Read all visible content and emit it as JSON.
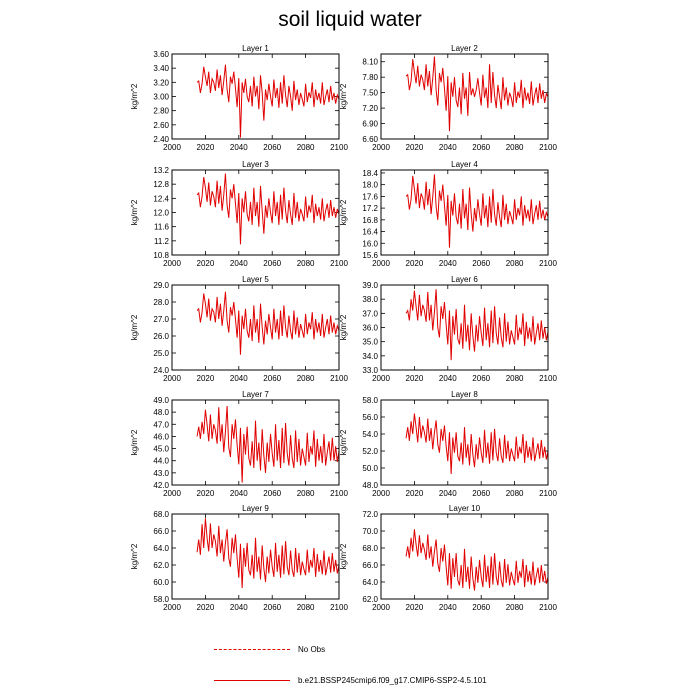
{
  "title": "soil liquid water",
  "colors": {
    "series": "#e00000",
    "axis": "#000000"
  },
  "legend": {
    "obs_label": "No Obs",
    "model_label": "b.e21.BSSP245cmip6.f09_g17.CMIP6-SSP2-4.5.101"
  },
  "chart_data": [
    {
      "type": "line",
      "title": "Layer 1",
      "ylabel": "kg/m^2",
      "xlim": [
        2000,
        2100
      ],
      "ylim": [
        2.4,
        3.6
      ],
      "yticks": [
        "2.40",
        "2.60",
        "2.80",
        "3.00",
        "3.20",
        "3.40",
        "3.60"
      ],
      "xticks": [
        "2000",
        "2020",
        "2040",
        "2060",
        "2080",
        "2100"
      ],
      "x_start": 2015,
      "values": [
        3.2,
        3.22,
        3.05,
        3.18,
        3.42,
        3.28,
        3.15,
        3.35,
        3.05,
        3.25,
        3.2,
        3.08,
        3.38,
        3.12,
        3.3,
        3.02,
        3.22,
        3.45,
        3.1,
        2.92,
        3.28,
        3.18,
        3.35,
        3.12,
        2.85,
        3.26,
        2.42,
        3.2,
        3.05,
        3.25,
        3.0,
        2.92,
        3.15,
        2.86,
        3.28,
        3.0,
        3.15,
        2.82,
        3.3,
        3.05,
        2.66,
        3.1,
        2.95,
        3.18,
        3.0,
        2.86,
        3.24,
        2.98,
        3.12,
        2.84,
        3.2,
        2.9,
        3.3,
        3.02,
        2.85,
        3.15,
        3.0,
        2.8,
        3.22,
        2.95,
        3.1,
        2.88,
        3.05,
        2.96,
        2.86,
        3.18,
        2.92,
        3.06,
        2.98,
        3.2,
        2.85,
        3.1,
        2.95,
        3.05,
        2.9,
        3.2,
        2.88,
        3.0,
        3.1,
        2.92,
        3.15,
        2.95,
        3.05,
        2.9,
        3.02,
        2.96
      ]
    },
    {
      "type": "line",
      "title": "Layer 2",
      "ylabel": "kg/m^2",
      "xlim": [
        2000,
        2100
      ],
      "ylim": [
        6.6,
        8.25
      ],
      "yticks": [
        "6.60",
        "6.90",
        "7.20",
        "7.50",
        "7.80",
        "8.10"
      ],
      "xticks": [
        "2000",
        "2020",
        "2040",
        "2060",
        "2080",
        "2100"
      ],
      "x_start": 2015,
      "values": [
        7.82,
        7.85,
        7.55,
        7.72,
        8.15,
        7.9,
        7.68,
        8.02,
        7.62,
        7.85,
        7.75,
        7.55,
        8.05,
        7.62,
        7.92,
        7.45,
        7.78,
        8.2,
        7.55,
        7.25,
        7.88,
        7.7,
        7.98,
        7.58,
        7.15,
        7.82,
        6.75,
        7.7,
        7.42,
        7.8,
        7.35,
        7.22,
        7.6,
        7.08,
        7.88,
        7.38,
        7.6,
        7.05,
        7.9,
        7.45,
        7.58,
        7.42,
        7.55,
        7.78,
        7.5,
        7.25,
        7.85,
        7.4,
        7.6,
        7.2,
        8.05,
        7.3,
        7.9,
        7.45,
        7.2,
        7.65,
        7.42,
        7.18,
        7.8,
        7.35,
        7.6,
        7.25,
        7.5,
        7.4,
        7.22,
        7.7,
        7.3,
        7.52,
        7.4,
        7.75,
        7.2,
        7.6,
        7.35,
        7.5,
        7.28,
        7.72,
        7.25,
        7.45,
        7.6,
        7.3,
        7.68,
        7.38,
        7.55,
        7.3,
        7.48,
        7.42
      ]
    },
    {
      "type": "line",
      "title": "Layer 3",
      "ylabel": "kg/m^2",
      "xlim": [
        2000,
        2100
      ],
      "ylim": [
        10.8,
        13.2
      ],
      "yticks": [
        "10.8",
        "11.2",
        "11.6",
        "12.0",
        "12.4",
        "12.8",
        "13.2"
      ],
      "xticks": [
        "2000",
        "2020",
        "2040",
        "2060",
        "2080",
        "2100"
      ],
      "x_start": 2015,
      "values": [
        12.5,
        12.55,
        12.15,
        12.45,
        13.0,
        12.7,
        12.3,
        12.85,
        12.2,
        12.6,
        12.45,
        12.15,
        12.9,
        12.25,
        12.75,
        12.05,
        12.5,
        13.1,
        12.2,
        11.85,
        12.65,
        12.4,
        12.8,
        12.25,
        11.7,
        12.55,
        11.1,
        12.4,
        12.0,
        12.6,
        11.95,
        11.75,
        12.3,
        11.65,
        12.7,
        11.9,
        12.3,
        11.6,
        12.75,
        12.05,
        11.4,
        12.2,
        11.85,
        12.4,
        12.0,
        11.7,
        12.6,
        11.9,
        12.3,
        11.65,
        12.5,
        11.8,
        12.7,
        12.05,
        11.7,
        12.35,
        11.95,
        11.65,
        12.55,
        11.85,
        12.3,
        11.75,
        12.1,
        11.95,
        11.75,
        12.45,
        11.85,
        12.2,
        12.0,
        12.5,
        11.7,
        12.25,
        11.9,
        12.15,
        11.8,
        12.4,
        11.75,
        12.05,
        12.25,
        11.85,
        12.35,
        11.9,
        12.15,
        11.85,
        12.1,
        11.95
      ]
    },
    {
      "type": "line",
      "title": "Layer 4",
      "ylabel": "kg/m^2",
      "xlim": [
        2000,
        2100
      ],
      "ylim": [
        15.6,
        18.5
      ],
      "yticks": [
        "15.6",
        "16.0",
        "16.4",
        "16.8",
        "17.2",
        "17.6",
        "18.0",
        "18.4"
      ],
      "xticks": [
        "2000",
        "2020",
        "2040",
        "2060",
        "2080",
        "2100"
      ],
      "x_start": 2015,
      "values": [
        17.6,
        17.65,
        17.15,
        17.5,
        18.3,
        17.85,
        17.35,
        18.05,
        17.2,
        17.7,
        17.55,
        17.15,
        18.1,
        17.3,
        17.85,
        17.0,
        17.6,
        18.35,
        17.25,
        16.8,
        17.8,
        17.45,
        18.0,
        17.3,
        16.6,
        17.65,
        15.85,
        17.45,
        16.95,
        17.7,
        16.9,
        16.65,
        17.35,
        16.5,
        17.85,
        16.85,
        17.35,
        16.45,
        17.9,
        17.0,
        16.4,
        17.2,
        16.75,
        17.5,
        17.0,
        16.6,
        17.7,
        16.85,
        17.3,
        16.55,
        17.6,
        16.7,
        17.85,
        17.0,
        16.6,
        17.4,
        16.9,
        16.55,
        17.65,
        16.8,
        17.35,
        16.65,
        17.1,
        16.9,
        16.65,
        17.5,
        16.8,
        17.2,
        16.95,
        17.6,
        16.6,
        17.3,
        16.85,
        17.15,
        16.75,
        17.5,
        16.65,
        17.0,
        17.3,
        16.8,
        17.45,
        16.85,
        17.15,
        16.8,
        17.05,
        16.9
      ]
    },
    {
      "type": "line",
      "title": "Layer 5",
      "ylabel": "kg/m^2",
      "xlim": [
        2000,
        2100
      ],
      "ylim": [
        24.0,
        29.0
      ],
      "yticks": [
        "24.0",
        "25.0",
        "26.0",
        "27.0",
        "28.0",
        "29.0"
      ],
      "xticks": [
        "2000",
        "2020",
        "2040",
        "2060",
        "2080",
        "2100"
      ],
      "x_start": 2015,
      "values": [
        27.5,
        27.6,
        26.8,
        27.4,
        28.5,
        27.9,
        27.1,
        28.2,
        26.9,
        27.6,
        27.4,
        26.8,
        28.3,
        27.0,
        27.9,
        26.6,
        27.5,
        28.6,
        26.9,
        26.2,
        27.7,
        27.2,
        28.0,
        27.0,
        25.9,
        27.5,
        24.9,
        27.2,
        26.4,
        27.6,
        26.3,
        25.9,
        27.0,
        25.7,
        27.8,
        26.2,
        27.0,
        25.6,
        27.9,
        26.5,
        25.5,
        26.9,
        26.1,
        27.3,
        26.5,
        25.8,
        27.6,
        26.2,
        27.0,
        25.8,
        27.5,
        26.0,
        27.8,
        26.5,
        25.9,
        27.2,
        26.3,
        25.8,
        27.5,
        26.1,
        27.1,
        25.9,
        26.7,
        26.3,
        25.9,
        27.3,
        26.1,
        26.8,
        26.4,
        27.4,
        25.8,
        27.0,
        26.2,
        26.8,
        26.0,
        27.3,
        25.9,
        26.5,
        27.0,
        26.1,
        27.2,
        26.2,
        26.8,
        26.1,
        26.6,
        26.3
      ]
    },
    {
      "type": "line",
      "title": "Layer 6",
      "ylabel": "kg/m^2",
      "xlim": [
        2000,
        2100
      ],
      "ylim": [
        33.0,
        39.0
      ],
      "yticks": [
        "33.0",
        "34.0",
        "35.0",
        "36.0",
        "37.0",
        "38.0",
        "39.0"
      ],
      "xticks": [
        "2000",
        "2020",
        "2040",
        "2060",
        "2080",
        "2100"
      ],
      "x_start": 2015,
      "values": [
        37.0,
        37.2,
        36.5,
        38.0,
        37.2,
        38.6,
        37.5,
        36.5,
        38.3,
        36.8,
        37.6,
        37.2,
        36.4,
        38.5,
        36.5,
        37.6,
        35.8,
        37.1,
        38.7,
        36.0,
        35.3,
        37.5,
        36.6,
        37.8,
        36.2,
        34.8,
        37.2,
        33.7,
        36.8,
        35.5,
        37.3,
        35.2,
        34.8,
        36.3,
        34.5,
        37.6,
        35.0,
        36.2,
        34.4,
        37.0,
        35.4,
        34.3,
        36.2,
        35.0,
        36.8,
        35.6,
        34.7,
        37.4,
        35.1,
        36.3,
        34.6,
        37.2,
        34.9,
        37.5,
        35.6,
        34.8,
        36.7,
        35.3,
        34.6,
        37.0,
        35.0,
        36.4,
        34.8,
        35.8,
        35.3,
        34.8,
        36.9,
        35.1,
        36.0,
        35.5,
        37.0,
        34.7,
        36.4,
        35.2,
        36.0,
        35.0,
        36.8,
        34.8,
        35.6,
        36.3,
        35.1,
        36.5,
        35.2,
        36.0,
        35.1,
        35.7
      ]
    },
    {
      "type": "line",
      "title": "Layer 7",
      "ylabel": "kg/m^2",
      "xlim": [
        2000,
        2100
      ],
      "ylim": [
        42.0,
        49.0
      ],
      "yticks": [
        "42.0",
        "43.0",
        "44.0",
        "45.0",
        "46.0",
        "47.0",
        "48.0",
        "49.0"
      ],
      "xticks": [
        "2000",
        "2020",
        "2040",
        "2060",
        "2080",
        "2100"
      ],
      "x_start": 2015,
      "values": [
        46.0,
        46.8,
        45.8,
        47.2,
        46.2,
        48.2,
        47.0,
        45.6,
        47.8,
        45.8,
        47.0,
        46.5,
        45.4,
        48.4,
        45.6,
        47.0,
        44.7,
        46.4,
        48.5,
        45.1,
        44.3,
        47.0,
        45.8,
        47.4,
        45.3,
        43.7,
        46.7,
        42.2,
        46.2,
        44.5,
        46.8,
        44.2,
        43.6,
        45.6,
        43.4,
        47.3,
        44.0,
        45.5,
        43.2,
        46.6,
        44.4,
        43.0,
        45.5,
        43.9,
        46.2,
        44.6,
        43.5,
        47.0,
        44.0,
        45.7,
        43.4,
        46.7,
        43.8,
        47.1,
        44.6,
        43.6,
        46.1,
        44.2,
        43.4,
        46.5,
        43.9,
        45.8,
        43.6,
        45.0,
        44.3,
        43.6,
        46.3,
        43.9,
        45.2,
        44.5,
        46.5,
        43.5,
        45.8,
        44.0,
        45.2,
        43.8,
        46.2,
        43.6,
        44.7,
        45.6,
        44.0,
        45.9,
        44.0,
        45.2,
        43.9,
        44.8
      ]
    },
    {
      "type": "line",
      "title": "Layer 8",
      "ylabel": "kg/m^2",
      "xlim": [
        2000,
        2100
      ],
      "ylim": [
        48.0,
        58.0
      ],
      "yticks": [
        "48.0",
        "50.0",
        "52.0",
        "54.0",
        "56.0",
        "58.0"
      ],
      "xticks": [
        "2000",
        "2020",
        "2040",
        "2060",
        "2080",
        "2100"
      ],
      "x_start": 2015,
      "values": [
        53.5,
        54.8,
        53.2,
        55.5,
        54.0,
        56.4,
        54.8,
        53.0,
        56.0,
        53.5,
        55.0,
        54.2,
        53.0,
        55.8,
        53.2,
        54.7,
        52.2,
        54.2,
        55.6,
        52.8,
        51.8,
        54.6,
        53.2,
        55.0,
        52.6,
        50.8,
        54.2,
        49.3,
        53.6,
        51.8,
        54.2,
        51.4,
        50.8,
        53.0,
        50.4,
        54.8,
        51.2,
        52.8,
        50.3,
        54.0,
        51.6,
        50.1,
        52.8,
        51.0,
        53.6,
        51.8,
        50.6,
        54.5,
        51.2,
        53.0,
        50.5,
        54.2,
        50.9,
        54.6,
        51.8,
        50.8,
        53.5,
        51.4,
        50.6,
        53.9,
        51.1,
        53.2,
        50.8,
        52.3,
        51.5,
        50.8,
        53.7,
        51.1,
        52.5,
        51.7,
        54.0,
        50.6,
        53.2,
        51.2,
        52.5,
        50.9,
        53.6,
        50.8,
        51.9,
        52.9,
        51.1,
        53.3,
        51.2,
        52.5,
        51.0,
        52.0
      ]
    },
    {
      "type": "line",
      "title": "Layer 9",
      "ylabel": "kg/m^2",
      "xlim": [
        2000,
        2100
      ],
      "ylim": [
        58.0,
        68.0
      ],
      "yticks": [
        "58.0",
        "60.0",
        "62.0",
        "64.0",
        "66.0",
        "68.0"
      ],
      "xticks": [
        "2000",
        "2020",
        "2040",
        "2060",
        "2080",
        "2100"
      ],
      "x_start": 2015,
      "values": [
        63.5,
        65.0,
        63.2,
        66.8,
        64.0,
        67.5,
        65.2,
        63.6,
        66.9,
        64.0,
        65.6,
        64.8,
        63.0,
        66.6,
        63.4,
        65.0,
        62.4,
        64.6,
        66.2,
        62.8,
        61.8,
        65.2,
        63.4,
        65.6,
        62.8,
        60.5,
        64.5,
        59.3,
        64.0,
        61.8,
        64.6,
        61.4,
        60.8,
        63.2,
        60.4,
        65.2,
        61.2,
        63.0,
        60.3,
        64.3,
        61.6,
        60.0,
        63.0,
        61.0,
        63.8,
        61.8,
        60.6,
        64.6,
        61.2,
        63.2,
        60.5,
        64.3,
        60.9,
        64.8,
        61.8,
        60.8,
        63.7,
        61.4,
        60.6,
        64.0,
        61.1,
        63.4,
        60.8,
        62.4,
        61.5,
        60.8,
        63.8,
        61.1,
        62.6,
        61.7,
        64.0,
        60.6,
        63.3,
        61.2,
        62.6,
        60.9,
        63.7,
        60.8,
        61.9,
        63.0,
        61.1,
        63.4,
        61.2,
        62.6,
        61.0,
        62.0
      ]
    },
    {
      "type": "line",
      "title": "Layer 10",
      "ylabel": "kg/m^2",
      "xlim": [
        2000,
        2100
      ],
      "ylim": [
        62.0,
        72.0
      ],
      "yticks": [
        "62.0",
        "64.0",
        "66.0",
        "68.0",
        "70.0",
        "72.0"
      ],
      "xticks": [
        "2000",
        "2020",
        "2040",
        "2060",
        "2080",
        "2100"
      ],
      "x_start": 2015,
      "values": [
        67.0,
        68.2,
        66.8,
        69.2,
        67.6,
        70.2,
        68.4,
        67.0,
        69.5,
        67.4,
        68.6,
        67.8,
        66.6,
        69.6,
        66.8,
        68.2,
        65.8,
        67.6,
        69.0,
        66.2,
        65.2,
        68.0,
        66.4,
        68.4,
        65.8,
        63.6,
        67.4,
        63.2,
        66.8,
        64.6,
        67.4,
        64.2,
        63.6,
        66.0,
        63.3,
        67.9,
        64.0,
        65.8,
        63.2,
        67.0,
        64.4,
        63.0,
        65.8,
        63.9,
        66.6,
        64.6,
        63.4,
        67.2,
        64.0,
        65.9,
        63.3,
        67.0,
        63.7,
        67.4,
        64.6,
        63.6,
        66.4,
        64.2,
        63.4,
        66.7,
        63.9,
        66.1,
        63.6,
        65.2,
        64.3,
        63.6,
        66.5,
        63.9,
        65.3,
        64.5,
        66.7,
        63.4,
        66.0,
        64.0,
        65.3,
        63.7,
        66.4,
        63.6,
        64.7,
        65.7,
        63.9,
        66.0,
        64.0,
        65.3,
        63.8,
        64.6
      ]
    }
  ]
}
